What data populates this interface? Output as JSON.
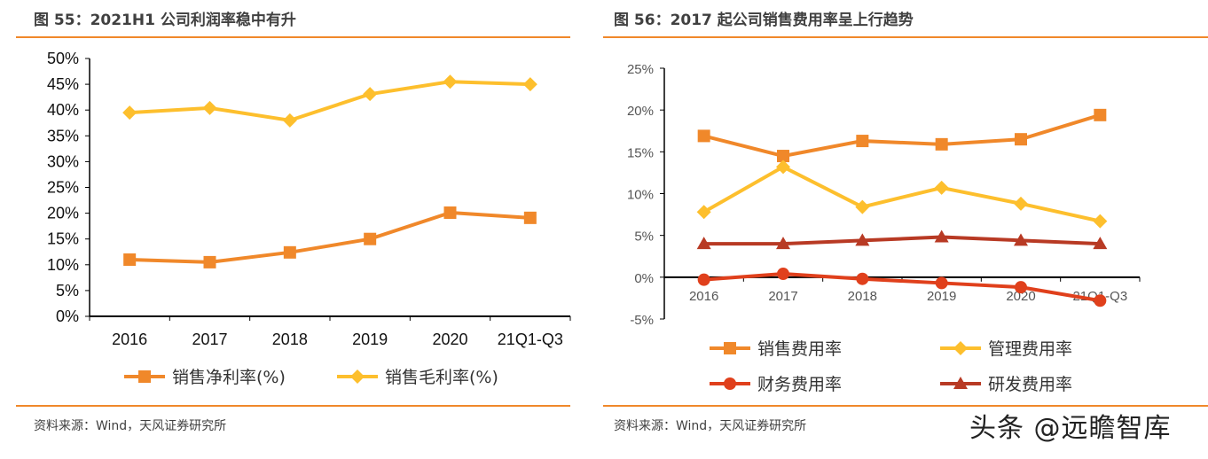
{
  "left": {
    "title": "图 55：2021H1 公司利润率稳中有升",
    "source": "资料来源：Wind，天风证券研究所"
  },
  "right": {
    "title": "图 56：2017 起公司销售费用率呈上行趋势",
    "source": "资料来源：Wind，天风证券研究所"
  },
  "watermark": "头条 @远瞻智库",
  "chart_data": [
    {
      "type": "line",
      "title": "图 55：2021H1 公司利润率稳中有升",
      "categories": [
        "2016",
        "2017",
        "2018",
        "2019",
        "2020",
        "21Q1-Q3"
      ],
      "ylim": [
        0,
        50
      ],
      "yticks": [
        "0%",
        "5%",
        "10%",
        "15%",
        "20%",
        "25%",
        "30%",
        "35%",
        "40%",
        "45%",
        "50%"
      ],
      "legend_position": "bottom",
      "grid": false,
      "series": [
        {
          "name": "销售净利率(%)",
          "marker": "square",
          "color": "#f0882a",
          "values": [
            11.0,
            10.5,
            12.4,
            15.0,
            20.1,
            19.1
          ]
        },
        {
          "name": "销售毛利率(%)",
          "marker": "diamond",
          "color": "#fdbf2d",
          "values": [
            39.5,
            40.4,
            38.0,
            43.1,
            45.5,
            45.0
          ]
        }
      ]
    },
    {
      "type": "line",
      "title": "图 56：2017 起公司销售费用率呈上行趋势",
      "categories": [
        "2016",
        "2017",
        "2018",
        "2019",
        "2020",
        "21Q1-Q3"
      ],
      "ylim": [
        -5,
        25
      ],
      "yticks": [
        "-5%",
        "0%",
        "5%",
        "10%",
        "15%",
        "20%",
        "25%"
      ],
      "legend_position": "bottom",
      "grid": false,
      "series": [
        {
          "name": "销售费用率",
          "marker": "square",
          "color": "#f0882a",
          "values": [
            16.9,
            14.5,
            16.3,
            15.9,
            16.5,
            19.4
          ]
        },
        {
          "name": "管理费用率",
          "marker": "diamond",
          "color": "#fdbf2d",
          "values": [
            7.8,
            13.2,
            8.4,
            10.7,
            8.8,
            6.7
          ]
        },
        {
          "name": "财务费用率",
          "marker": "circle",
          "color": "#e0401c",
          "values": [
            -0.3,
            0.4,
            -0.2,
            -0.7,
            -1.2,
            -2.8
          ]
        },
        {
          "name": "研发费用率",
          "marker": "triangle",
          "color": "#b83a24",
          "values": [
            4.0,
            4.0,
            4.4,
            4.8,
            4.4,
            4.0
          ]
        }
      ]
    }
  ]
}
